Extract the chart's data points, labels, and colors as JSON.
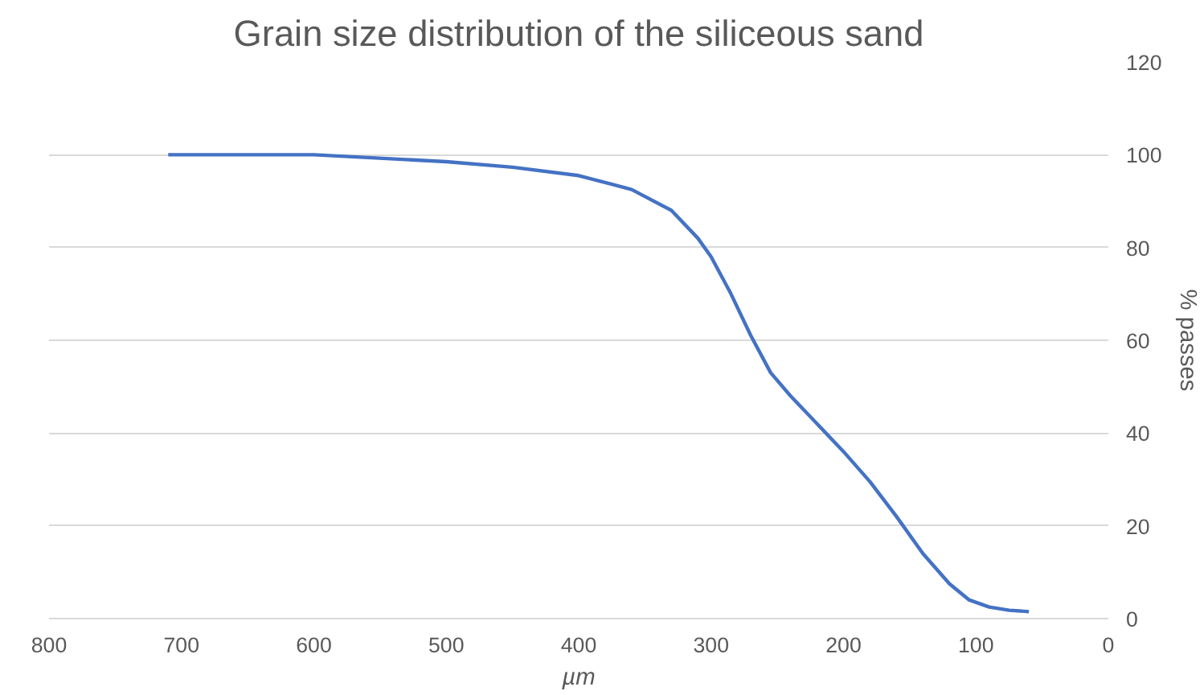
{
  "chart_data": {
    "type": "line",
    "title": "Grain size distribution of the siliceous sand",
    "xlabel": "µm",
    "ylabel": "% passes",
    "x": [
      710,
      600,
      500,
      450,
      400,
      360,
      330,
      310,
      300,
      285,
      270,
      255,
      240,
      220,
      200,
      180,
      160,
      140,
      120,
      105,
      90,
      75,
      60
    ],
    "series": [
      {
        "color": "#4472c4",
        "values": [
          100,
          100,
          98.5,
          97.3,
          95.5,
          92.5,
          88,
          82,
          78,
          70,
          61,
          53,
          48,
          42,
          36,
          29.5,
          22,
          14,
          7.5,
          4,
          2.5,
          1.8,
          1.5
        ]
      }
    ],
    "xlim": [
      800,
      0
    ],
    "xticks": [
      800,
      700,
      600,
      500,
      400,
      300,
      200,
      100,
      0
    ],
    "ylim": [
      0,
      120
    ],
    "yticks": [
      0,
      20,
      40,
      60,
      80,
      100,
      120
    ],
    "grid": "y",
    "marker": "none",
    "line_style": "solid"
  }
}
